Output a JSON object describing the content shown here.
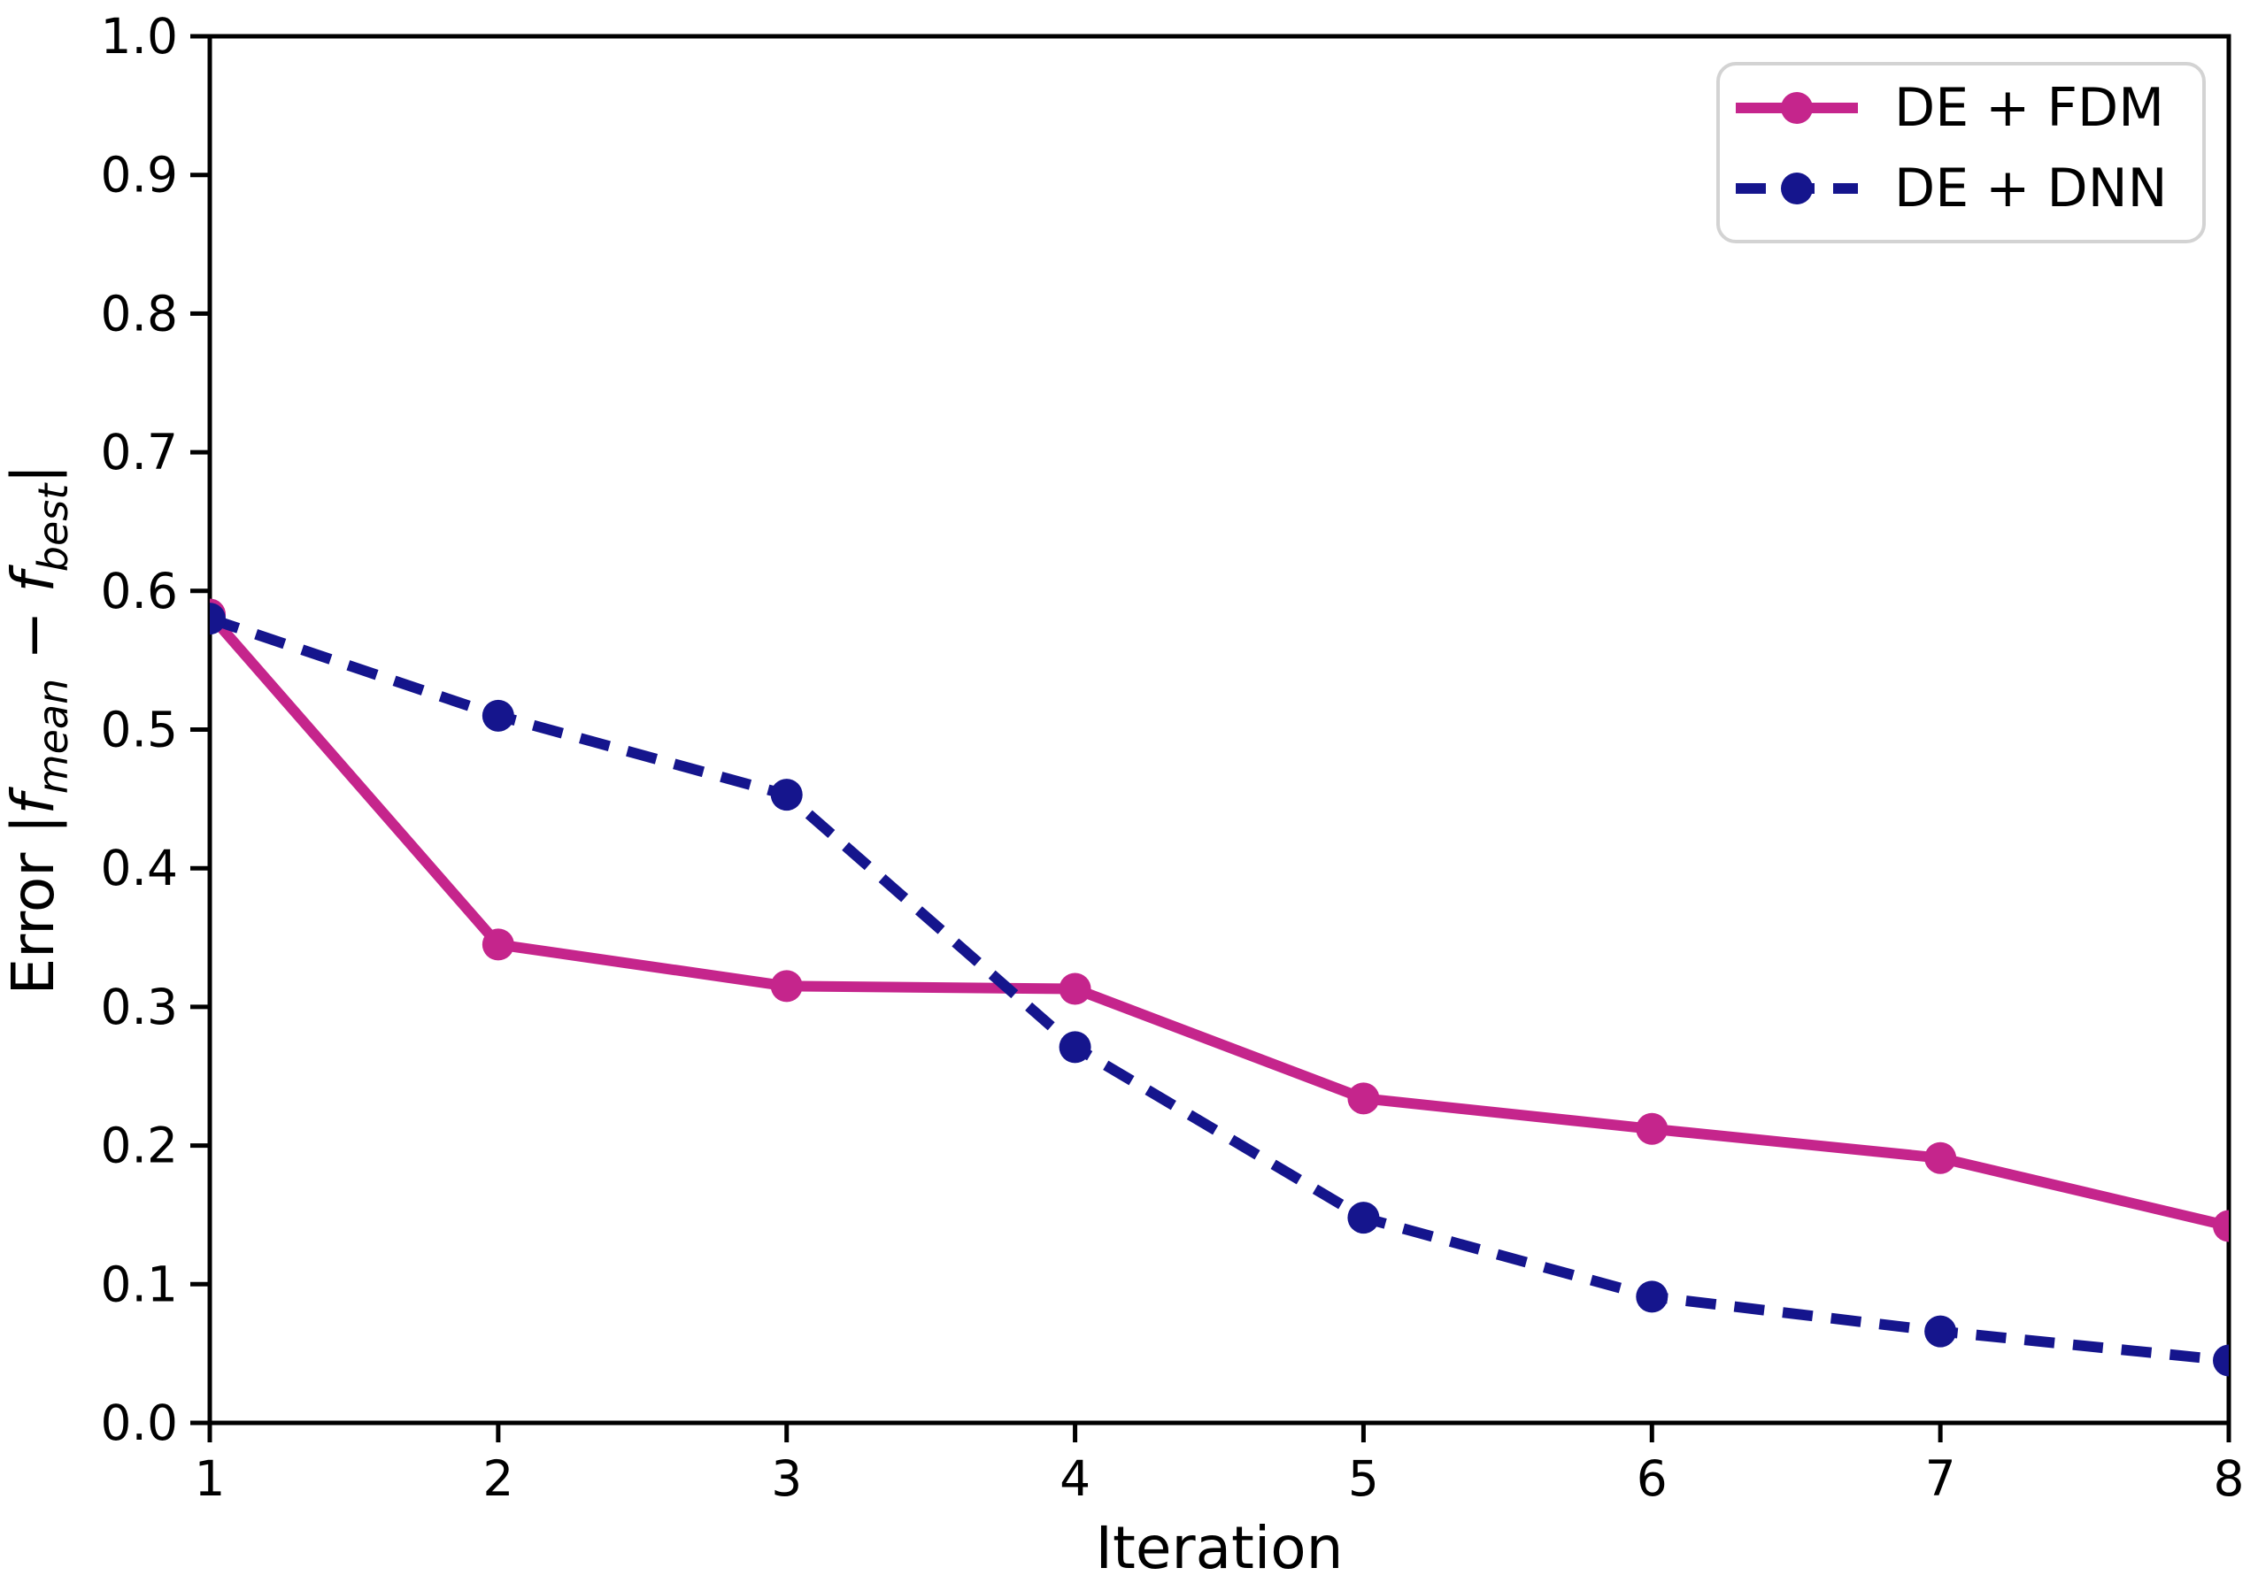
{
  "figure": {
    "background": "#ffffff",
    "axis_color": "#000000",
    "legend_border_color": "#d3d3d3",
    "legend_background": "#ffffff"
  },
  "chart_data": {
    "type": "line",
    "title": "",
    "xlabel": "Iteration",
    "ylabel": "Error |f_mean − f_best|",
    "ylabel_parts": [
      {
        "text": "Error |",
        "italic": false,
        "sub": false
      },
      {
        "text": "f",
        "italic": true,
        "sub": false
      },
      {
        "text": "mean",
        "italic": true,
        "sub": true
      },
      {
        "text": " − ",
        "italic": false,
        "sub": false
      },
      {
        "text": "f",
        "italic": true,
        "sub": false
      },
      {
        "text": "best",
        "italic": true,
        "sub": true
      },
      {
        "text": "|",
        "italic": false,
        "sub": false
      }
    ],
    "xlim": [
      1,
      8
    ],
    "ylim": [
      0.0,
      1.0
    ],
    "xticks": [
      "1",
      "2",
      "3",
      "4",
      "5",
      "6",
      "7",
      "8"
    ],
    "yticks": [
      "0.0",
      "0.1",
      "0.2",
      "0.3",
      "0.4",
      "0.5",
      "0.6",
      "0.7",
      "0.8",
      "0.9",
      "1.0"
    ],
    "grid": false,
    "legend_position": "upper right",
    "x": [
      1,
      2,
      3,
      4,
      5,
      6,
      7,
      8
    ],
    "series": [
      {
        "name": "DE + FDM",
        "color": "#c5258c",
        "line_style": "solid",
        "marker": "circle",
        "values": [
          0.583,
          0.345,
          0.315,
          0.313,
          0.234,
          0.212,
          0.191,
          0.142
        ]
      },
      {
        "name": "DE + DNN",
        "color": "#15158d",
        "line_style": "dashed",
        "marker": "circle",
        "values": [
          0.58,
          0.51,
          0.453,
          0.271,
          0.148,
          0.091,
          0.066,
          0.045
        ]
      }
    ]
  }
}
